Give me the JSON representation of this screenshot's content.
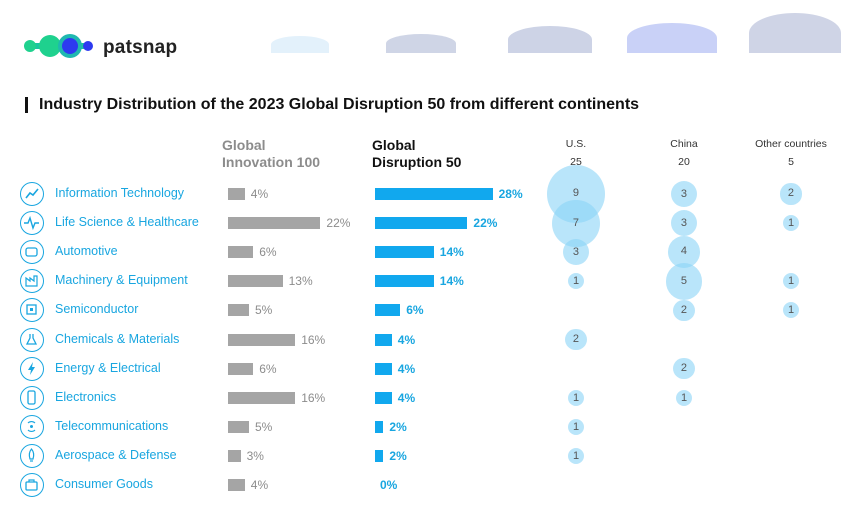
{
  "brand": {
    "name": "patsnap"
  },
  "title": "Industry Distribution of the 2023 Global Disruption 50 from different continents",
  "headers": {
    "gi_line1": "Global",
    "gi_line2": "Innovation 100",
    "gd_line1": "Global",
    "gd_line2": "Disruption 50"
  },
  "countries": [
    {
      "name": "U.S.",
      "total": "25"
    },
    {
      "name": "China",
      "total": "20"
    },
    {
      "name": "Other countries",
      "total": "5"
    }
  ],
  "colors": {
    "accent": "#19a6e0",
    "gd_bar": "#11a8ee",
    "gi_bar": "#a5a5a5",
    "bubble": "#8ad4f7"
  },
  "chart_data": {
    "type": "bar",
    "categories": [
      "Information Technology",
      "Life Science & Healthcare",
      "Automotive",
      "Machinery & Equipment",
      "Semiconductor",
      "Chemicals & Materials",
      "Energy & Electrical",
      "Electronics",
      "Telecommunications",
      "Aerospace & Defense",
      "Consumer Goods"
    ],
    "category_icons": [
      "chart-line-icon",
      "heartbeat-icon",
      "car-icon",
      "factory-icon",
      "chip-icon",
      "flask-icon",
      "lightning-icon",
      "phone-icon",
      "signal-icon",
      "rocket-icon",
      "bag-icon"
    ],
    "series": [
      {
        "name": "Global Innovation 100",
        "values": [
          4,
          22,
          6,
          13,
          5,
          16,
          6,
          16,
          5,
          3,
          4
        ],
        "labels": [
          "4%",
          "22%",
          "6%",
          "13%",
          "5%",
          "16%",
          "6%",
          "16%",
          "5%",
          "3%",
          "4%"
        ]
      },
      {
        "name": "Global Disruption 50",
        "values": [
          28,
          22,
          14,
          14,
          6,
          4,
          4,
          4,
          2,
          2,
          0
        ],
        "labels": [
          "28%",
          "22%",
          "14%",
          "14%",
          "6%",
          "4%",
          "4%",
          "4%",
          "2%",
          "2%",
          "0%"
        ]
      }
    ],
    "bubbles": {
      "U.S.": [
        "9",
        "7",
        "3",
        "1",
        "",
        "2",
        "",
        "1",
        "1",
        "1",
        ""
      ],
      "China": [
        "3",
        "3",
        "4",
        "5",
        "2",
        "",
        "2",
        "1",
        "",
        "",
        ""
      ],
      "Other countries": [
        "2",
        "1",
        "",
        "1",
        "1",
        "",
        "",
        "",
        "",
        "",
        ""
      ]
    }
  }
}
